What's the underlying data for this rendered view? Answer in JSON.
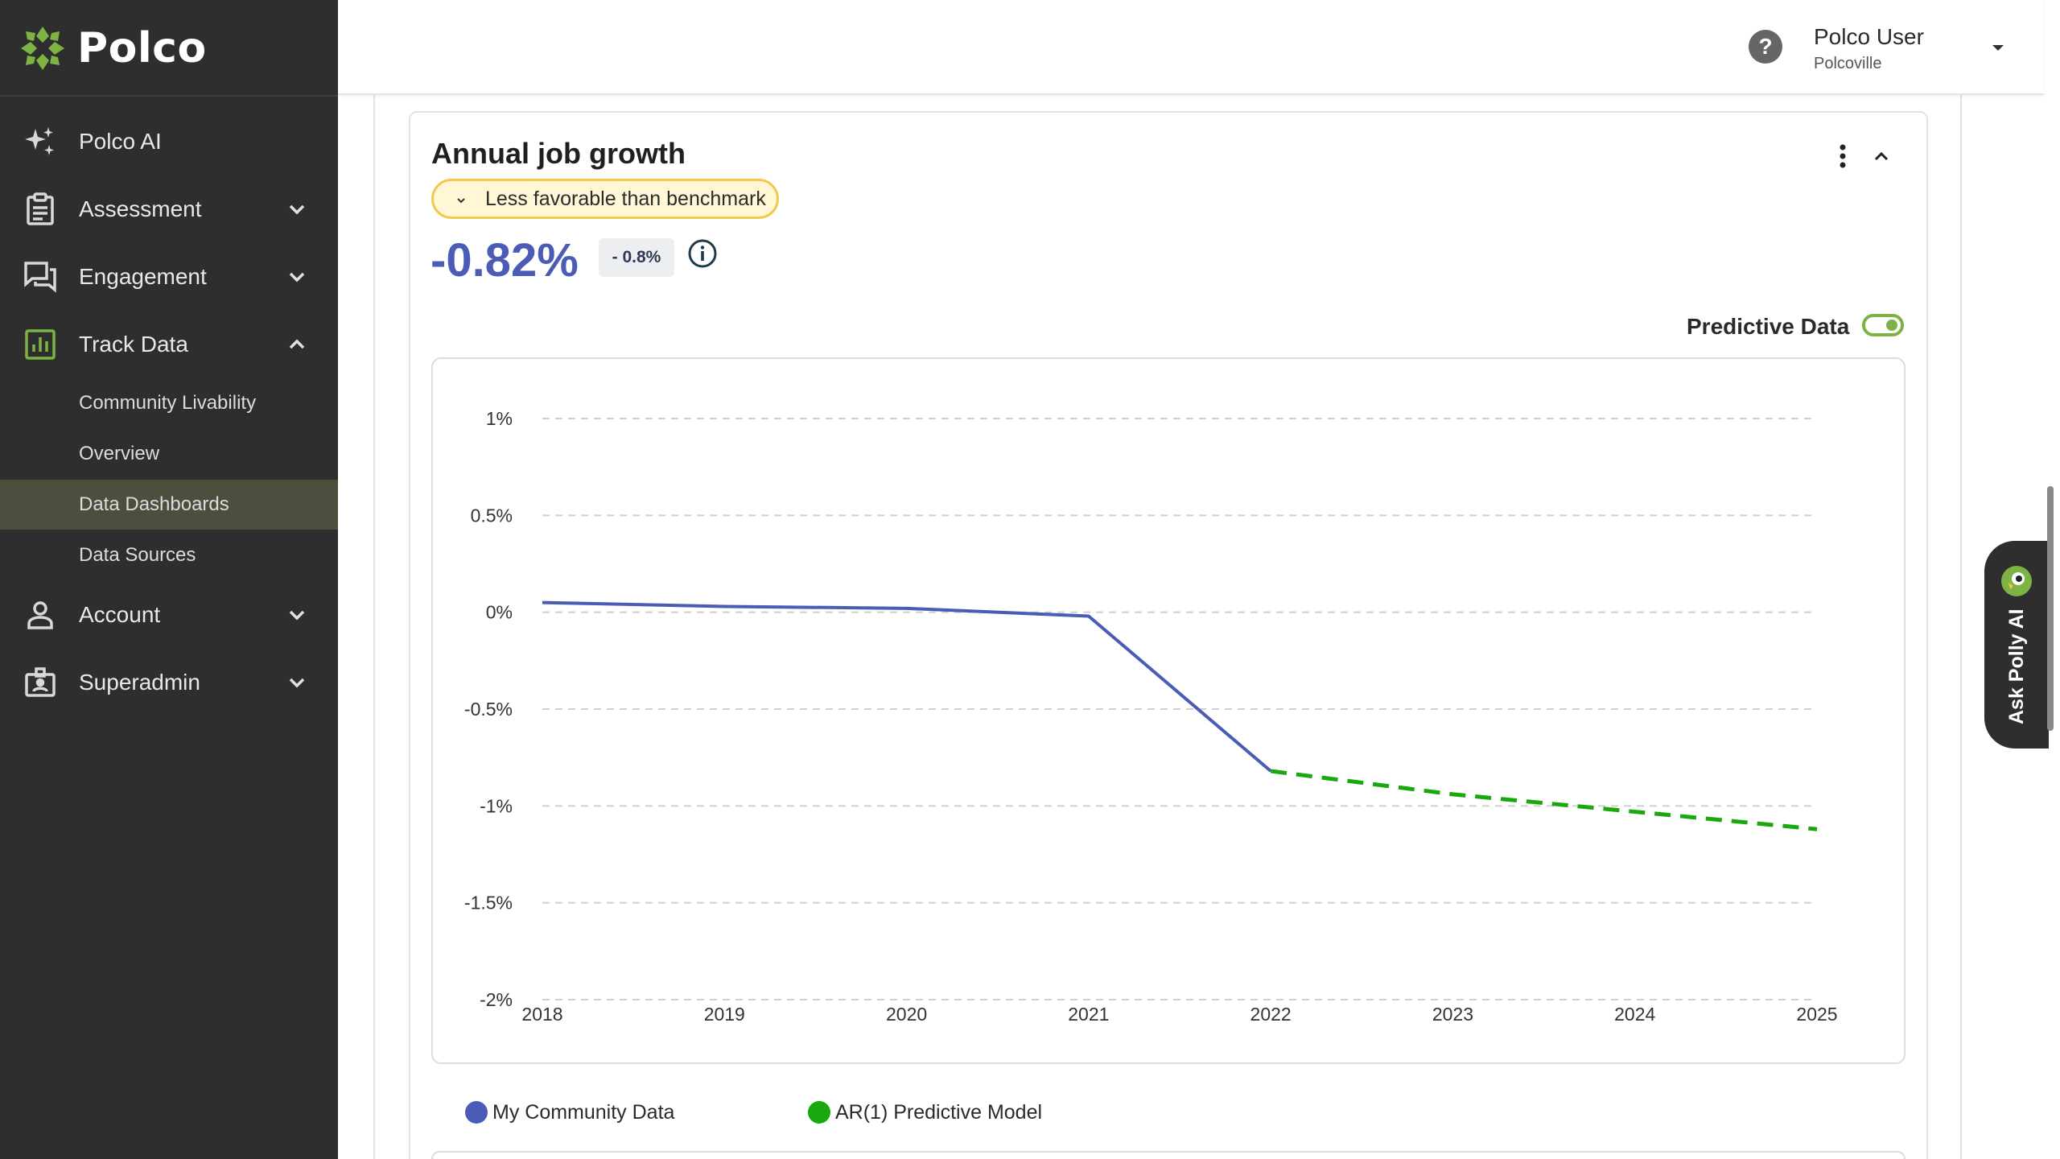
{
  "brand": {
    "name": "Polco",
    "accent": "#7cb342"
  },
  "sidebar": {
    "items": [
      {
        "label": "Polco AI",
        "icon": "sparkles-icon"
      },
      {
        "label": "Assessment",
        "icon": "clipboard-icon"
      },
      {
        "label": "Engagement",
        "icon": "chat-bubbles-icon"
      },
      {
        "label": "Track Data",
        "icon": "bar-chart-icon",
        "expanded": true,
        "children": [
          {
            "label": "Community Livability"
          },
          {
            "label": "Overview"
          },
          {
            "label": "Data Dashboards",
            "active": true
          },
          {
            "label": "Data Sources"
          }
        ]
      },
      {
        "label": "Account",
        "icon": "person-icon"
      },
      {
        "label": "Superadmin",
        "icon": "admin-badge-icon"
      }
    ]
  },
  "header": {
    "user_name": "Polco User",
    "user_org": "Polcoville"
  },
  "card": {
    "title": "Annual job growth",
    "benchmark_label": "Less favorable than benchmark",
    "metric_value": "-0.82%",
    "metric_delta": "- 0.8%",
    "predictive_label": "Predictive Data",
    "predictive_enabled": true
  },
  "chart_data": {
    "type": "line",
    "title": "",
    "xlabel": "",
    "ylabel": "",
    "x": [
      "2018",
      "2019",
      "2020",
      "2021",
      "2022",
      "2023",
      "2024",
      "2025"
    ],
    "y_ticks": [
      "1%",
      "0.5%",
      "0%",
      "-0.5%",
      "-1%",
      "-1.5%",
      "-2%"
    ],
    "ylim": [
      -2,
      1
    ],
    "grid": true,
    "legend_placement": "bottom-left",
    "series": [
      {
        "name": "My Community Data",
        "color": "#4a5cb5",
        "style": "solid",
        "x": [
          "2018",
          "2019",
          "2020",
          "2021",
          "2022"
        ],
        "values": [
          0.05,
          0.03,
          0.02,
          -0.02,
          -0.82
        ]
      },
      {
        "name": "AR(1) Predictive Model",
        "color": "#1aa80f",
        "style": "dashed",
        "x": [
          "2022",
          "2023",
          "2024",
          "2025"
        ],
        "values": [
          -0.82,
          -0.94,
          -1.03,
          -1.12
        ]
      }
    ]
  },
  "ask_polly": {
    "label": "Ask Polly AI"
  }
}
